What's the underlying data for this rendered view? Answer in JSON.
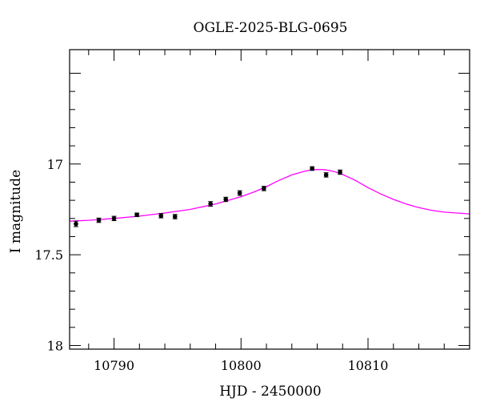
{
  "chart_data": {
    "type": "scatter",
    "title": "OGLE-2025-BLG-0695",
    "xlabel": "HJD - 2450000",
    "ylabel": "I magnitude",
    "xlim": [
      10786.5,
      10818
    ],
    "ylim": [
      18.02,
      16.37
    ],
    "y_inverted": true,
    "grid": false,
    "x_ticks": [
      10790,
      10800,
      10810
    ],
    "x_tick_labels": [
      "10790",
      "10800",
      "10810"
    ],
    "y_ticks": [
      17,
      17.5,
      18
    ],
    "y_tick_labels": [
      "17",
      "17.5",
      "18"
    ],
    "series": [
      {
        "kind": "points",
        "color": "#000000",
        "x": [
          10787.0,
          10788.8,
          10790.0,
          10791.8,
          10793.7,
          10794.8,
          10797.6,
          10798.8,
          10799.9,
          10801.8,
          10805.6,
          10806.7,
          10807.8
        ],
        "y": [
          17.33,
          17.31,
          17.3,
          17.28,
          17.285,
          17.29,
          17.22,
          17.195,
          17.16,
          17.135,
          17.025,
          17.06,
          17.045
        ],
        "err": [
          0.015,
          0.012,
          0.012,
          0.01,
          0.012,
          0.012,
          0.013,
          0.012,
          0.013,
          0.012,
          0.01,
          0.012,
          0.012
        ]
      },
      {
        "kind": "model",
        "color": "#ff00ff",
        "x": [
          10786.5,
          10788,
          10790,
          10792,
          10794,
          10796,
          10798,
          10800,
          10801,
          10802,
          10803,
          10804,
          10805,
          10805.5,
          10806,
          10806.5,
          10807,
          10807.5,
          10808,
          10809,
          10810,
          10811,
          10812,
          10813,
          10814,
          10815,
          10816,
          10817,
          10818
        ],
        "y": [
          17.315,
          17.31,
          17.3,
          17.287,
          17.27,
          17.25,
          17.22,
          17.18,
          17.155,
          17.125,
          17.09,
          17.06,
          17.04,
          17.033,
          17.03,
          17.031,
          17.036,
          17.045,
          17.058,
          17.09,
          17.13,
          17.165,
          17.195,
          17.22,
          17.24,
          17.255,
          17.265,
          17.27,
          17.275
        ]
      }
    ]
  }
}
